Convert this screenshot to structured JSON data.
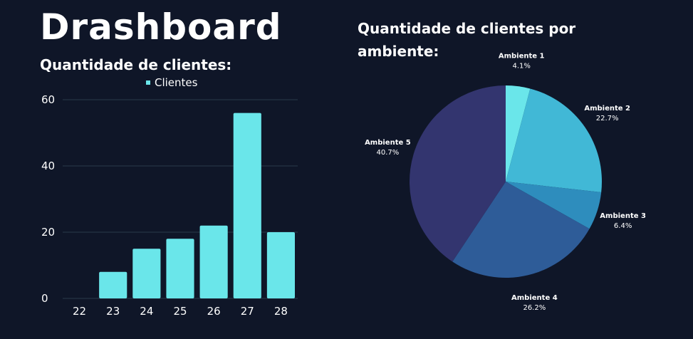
{
  "page": {
    "title": "Drashboard",
    "bar_heading": "Quantidade de clientes:",
    "pie_heading": "Quantidade de clientes por ambiente:"
  },
  "colors": {
    "background": "#0f1628",
    "bar": "#6ae6ea",
    "grid": "#2a3a4a",
    "text": "#ffffff"
  },
  "chart_data": [
    {
      "type": "bar",
      "title": "Quantidade de clientes:",
      "categories": [
        "22",
        "23",
        "24",
        "25",
        "26",
        "27",
        "28"
      ],
      "series": [
        {
          "name": "Clientes",
          "values": [
            0,
            8,
            15,
            18,
            22,
            56,
            20
          ]
        }
      ],
      "ylim": [
        0,
        60
      ],
      "yticks": [
        0,
        20,
        40,
        60
      ],
      "grid": true,
      "legend": "top-center"
    },
    {
      "type": "pie",
      "title": "Quantidade de clientes por ambiente:",
      "slices": [
        {
          "label": "Ambiente 1",
          "percent_label": "4.1%",
          "value": 4.1,
          "color": "#6ae6ea"
        },
        {
          "label": "Ambiente 2",
          "percent_label": "22.7%",
          "value": 22.7,
          "color": "#41b8d6"
        },
        {
          "label": "Ambiente 3",
          "percent_label": "6.4%",
          "value": 6.4,
          "color": "#2e8dbd"
        },
        {
          "label": "Ambiente 4",
          "percent_label": "26.2%",
          "value": 26.2,
          "color": "#2e5c98"
        },
        {
          "label": "Ambiente 5",
          "percent_label": "40.7%",
          "value": 40.7,
          "color": "#33356f"
        }
      ]
    }
  ]
}
